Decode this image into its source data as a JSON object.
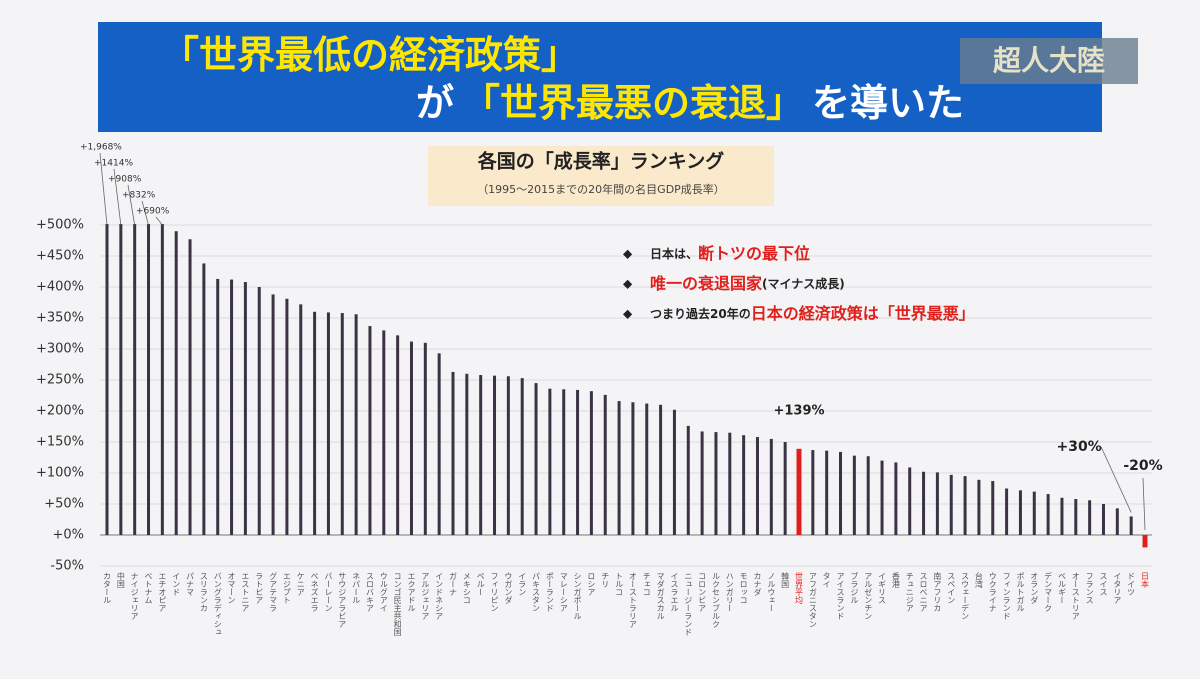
{
  "header": {
    "line1": [
      {
        "text": "「世界最低の経済政策」",
        "color": "#ffe600"
      }
    ],
    "line2": [
      {
        "text": "が",
        "color": "#ffffff"
      },
      {
        "text": "「世界最悪の衰退」",
        "color": "#ffe600"
      },
      {
        "text": "を導いた",
        "color": "#ffffff"
      }
    ],
    "logo": "超人大陸"
  },
  "chart_data": {
    "type": "bar",
    "title": "各国の「成長率」ランキング",
    "subtitle": "（1995～2015までの20年間の名目GDP成長率）",
    "categories": [
      "カタール",
      "中国",
      "ナイジェリア",
      "ベトナム",
      "エチオピア",
      "インド",
      "パナマ",
      "スリランカ",
      "バングラディシュ",
      "オマーン",
      "エストニア",
      "ラトビア",
      "グアテマラ",
      "エジプト",
      "ケニア",
      "ベネズエラ",
      "バーレーン",
      "サウジアラビア",
      "ネパール",
      "スロバキア",
      "ウルグアイ",
      "コンゴ民主共和国",
      "エクアドル",
      "アルジェリア",
      "インドネシア",
      "ガーナ",
      "メキシコ",
      "ペルー",
      "フィリピン",
      "ウガンダ",
      "イラン",
      "パキスタン",
      "ポーランド",
      "マレーシア",
      "シンガポール",
      "ロシア",
      "チリ",
      "トルコ",
      "オーストラリア",
      "チェコ",
      "マダガスカル",
      "イスラエル",
      "ニュージーランド",
      "コロンビア",
      "ルクセンブルク",
      "ハンガリー",
      "モロッコ",
      "カナダ",
      "ノルウェー",
      "韓国",
      "世界平均",
      "アフガニスタン",
      "タイ",
      "アイスランド",
      "ブラジル",
      "アルゼンチン",
      "イギリス",
      "香港",
      "チュニジア",
      "スロベニア",
      "南アフリカ",
      "スペイン",
      "スウェーデン",
      "台湾",
      "ウクライナ",
      "フィンランド",
      "ポルトガル",
      "オランダ",
      "デンマーク",
      "ベルギー",
      "オーストリア",
      "フランス",
      "スイス",
      "イタリア",
      "ドイツ",
      "日本"
    ],
    "values": [
      1968,
      1414,
      908,
      832,
      690,
      490,
      477,
      438,
      413,
      412,
      408,
      400,
      388,
      381,
      372,
      360,
      359,
      358,
      356,
      337,
      330,
      322,
      312,
      310,
      293,
      263,
      260,
      258,
      257,
      256,
      253,
      245,
      236,
      235,
      234,
      232,
      226,
      216,
      214,
      212,
      210,
      202,
      176,
      167,
      166,
      165,
      161,
      158,
      155,
      150,
      139,
      137,
      136,
      134,
      128,
      127,
      120,
      117,
      109,
      102,
      101,
      97,
      95,
      89,
      87,
      75,
      72,
      70,
      66,
      60,
      58,
      56,
      50,
      43,
      30,
      -20
    ],
    "value_labels": [
      "+1,968%",
      "+1414%",
      "+908%",
      "+832%",
      "+690%",
      null,
      null,
      null,
      null,
      null,
      null,
      null,
      null,
      null,
      null,
      null,
      null,
      null,
      null,
      null,
      null,
      null,
      null,
      null,
      null,
      null,
      null,
      null,
      null,
      null,
      null,
      null,
      null,
      null,
      null,
      null,
      null,
      null,
      null,
      null,
      null,
      null,
      null,
      null,
      null,
      null,
      null,
      null,
      null,
      null,
      "+139%",
      null,
      null,
      null,
      null,
      null,
      null,
      null,
      null,
      null,
      null,
      null,
      null,
      null,
      null,
      null,
      null,
      null,
      null,
      null,
      null,
      null,
      null,
      null,
      "+30%",
      "-20%"
    ],
    "colors": [
      "#3b3343",
      "#3b3343",
      "#3b3343",
      "#3b3343",
      "#3b3343",
      "#3b3343",
      "#3b3343",
      "#3b3343",
      "#3b3343",
      "#3b3343",
      "#3b3343",
      "#3b3343",
      "#3b3343",
      "#3b3343",
      "#3b3343",
      "#3b3343",
      "#3b3343",
      "#3b3343",
      "#3b3343",
      "#3b3343",
      "#3b3343",
      "#3b3343",
      "#3b3343",
      "#3b3343",
      "#3b3343",
      "#3b3343",
      "#3b3343",
      "#3b3343",
      "#3b3343",
      "#3b3343",
      "#3b3343",
      "#3b3343",
      "#3b3343",
      "#3b3343",
      "#3b3343",
      "#3b3343",
      "#3b3343",
      "#3b3343",
      "#3b3343",
      "#3b3343",
      "#3b3343",
      "#3b3343",
      "#3b3343",
      "#3b3343",
      "#3b3343",
      "#3b3343",
      "#3b3343",
      "#3b3343",
      "#3b3343",
      "#3b3343",
      "#e0201c",
      "#3b3343",
      "#3b3343",
      "#3b3343",
      "#3b3343",
      "#3b3343",
      "#3b3343",
      "#3b3343",
      "#3b3343",
      "#3b3343",
      "#3b3343",
      "#3b3343",
      "#3b3343",
      "#3b3343",
      "#3b3343",
      "#3b3343",
      "#3b3343",
      "#3b3343",
      "#3b3343",
      "#3b3343",
      "#3b3343",
      "#3b3343",
      "#3b3343",
      "#3b3343",
      "#3b3343",
      "#e0201c"
    ],
    "ylim": [
      -50,
      500
    ],
    "yticks": [
      {
        "value": -50,
        "label": "-50%"
      },
      {
        "value": 0,
        "label": "+0%"
      },
      {
        "value": 50,
        "label": "+50%"
      },
      {
        "value": 100,
        "label": "+100%"
      },
      {
        "value": 150,
        "label": "+150%"
      },
      {
        "value": 200,
        "label": "+200%"
      },
      {
        "value": 250,
        "label": "+250%"
      },
      {
        "value": 300,
        "label": "+300%"
      },
      {
        "value": 350,
        "label": "+350%"
      },
      {
        "value": 400,
        "label": "+400%"
      },
      {
        "value": 450,
        "label": "+450%"
      },
      {
        "value": 500,
        "label": "+500%"
      }
    ],
    "grid": true,
    "annotations": [
      [
        {
          "text": "日本は、",
          "color": "#222222"
        },
        {
          "text": "断トツの最下位",
          "color": "#e0201c"
        }
      ],
      [
        {
          "text": "唯一の衰退国家",
          "color": "#e0201c"
        },
        {
          "text": "(マイナス成長)",
          "color": "#222222"
        }
      ],
      [
        {
          "text": "つまり過去20年の",
          "color": "#222222"
        },
        {
          "text": "日本の経済政策は「世界最悪」",
          "color": "#e0201c"
        }
      ]
    ]
  }
}
